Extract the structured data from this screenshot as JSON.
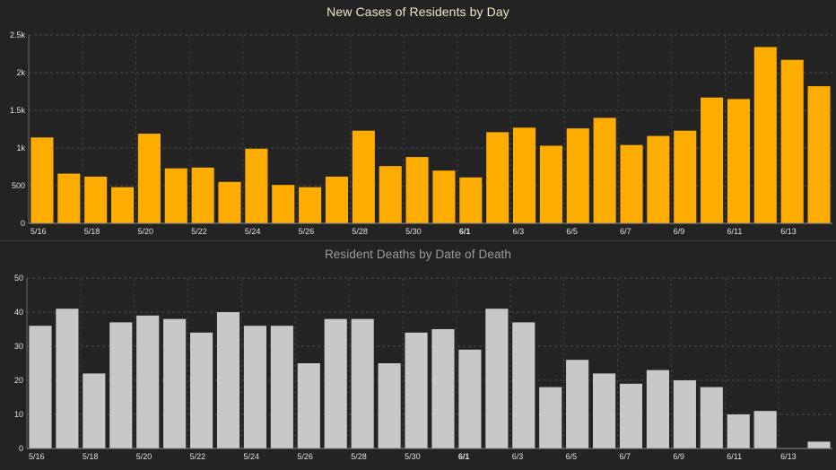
{
  "chart_data": [
    {
      "type": "bar",
      "title": "New Cases of Residents by Day",
      "xlabel": "",
      "ylabel": "",
      "ylim": [
        0,
        2500
      ],
      "y_ticks": [
        "0",
        "500",
        "1k",
        "1.5k",
        "2k",
        "2.5k"
      ],
      "y_tick_values": [
        0,
        500,
        1000,
        1500,
        2000,
        2500
      ],
      "x_tick_labels": [
        "5/16",
        "5/18",
        "5/20",
        "5/22",
        "5/24",
        "5/26",
        "5/28",
        "5/30",
        "6/1",
        "6/3",
        "6/5",
        "6/7",
        "6/9",
        "6/11",
        "6/13"
      ],
      "bold_tick": "6/1",
      "bar_color": "#FFAC00",
      "grid": true,
      "categories": [
        "5/16",
        "5/17",
        "5/18",
        "5/19",
        "5/20",
        "5/21",
        "5/22",
        "5/23",
        "5/24",
        "5/25",
        "5/26",
        "5/27",
        "5/28",
        "5/29",
        "5/30",
        "5/31",
        "6/1",
        "6/2",
        "6/3",
        "6/4",
        "6/5",
        "6/6",
        "6/7",
        "6/8",
        "6/9",
        "6/10",
        "6/11",
        "6/12",
        "6/13",
        "6/14"
      ],
      "values": [
        1140,
        660,
        620,
        480,
        1190,
        730,
        740,
        550,
        990,
        510,
        480,
        620,
        1230,
        760,
        880,
        700,
        610,
        1210,
        1270,
        1030,
        1260,
        1400,
        1040,
        1160,
        1230,
        1670,
        1650,
        2340,
        2170,
        1820
      ]
    },
    {
      "type": "bar",
      "title": "Resident Deaths by Date of Death",
      "xlabel": "",
      "ylabel": "",
      "ylim": [
        0,
        50
      ],
      "y_ticks": [
        "0",
        "10",
        "20",
        "30",
        "40",
        "50"
      ],
      "y_tick_values": [
        0,
        10,
        20,
        30,
        40,
        50
      ],
      "x_tick_labels": [
        "5/16",
        "5/18",
        "5/20",
        "5/22",
        "5/24",
        "5/26",
        "5/28",
        "5/30",
        "6/1",
        "6/3",
        "6/5",
        "6/7",
        "6/9",
        "6/11",
        "6/13"
      ],
      "bold_tick": "6/1",
      "bar_color": "#C8C8C8",
      "grid": true,
      "categories": [
        "5/16",
        "5/17",
        "5/18",
        "5/19",
        "5/20",
        "5/21",
        "5/22",
        "5/23",
        "5/24",
        "5/25",
        "5/26",
        "5/27",
        "5/28",
        "5/29",
        "5/30",
        "5/31",
        "6/1",
        "6/2",
        "6/3",
        "6/4",
        "6/5",
        "6/6",
        "6/7",
        "6/8",
        "6/9",
        "6/10",
        "6/11",
        "6/12",
        "6/13",
        "6/14"
      ],
      "values": [
        36,
        41,
        22,
        37,
        39,
        38,
        34,
        40,
        36,
        36,
        25,
        38,
        38,
        25,
        34,
        35,
        29,
        41,
        37,
        18,
        26,
        22,
        19,
        23,
        20,
        18,
        10,
        11,
        0,
        2
      ]
    }
  ]
}
